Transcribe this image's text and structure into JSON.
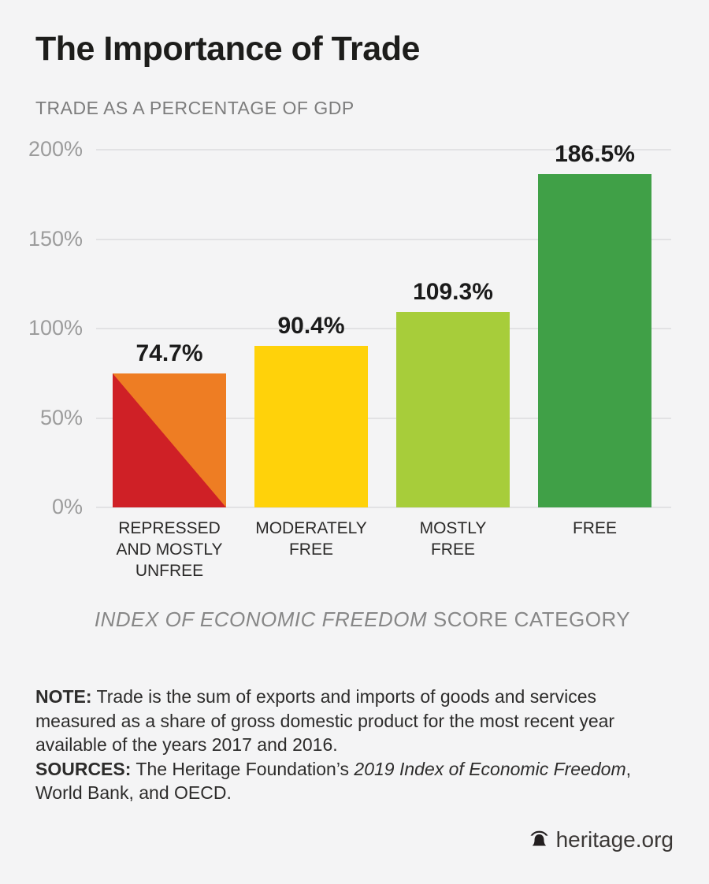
{
  "page": {
    "background": "#f4f4f5"
  },
  "header": {
    "title": "The Importance of Trade",
    "subtitle": "TRADE AS A PERCENTAGE OF GDP"
  },
  "chart_data": {
    "type": "bar",
    "title": "The Importance of Trade",
    "subtitle": "TRADE AS A PERCENTAGE OF GDP",
    "ylim": [
      0,
      200
    ],
    "grid": true,
    "yticks": [
      {
        "value": 200,
        "label": "200%"
      },
      {
        "value": 150,
        "label": "150%"
      },
      {
        "value": 100,
        "label": "100%"
      },
      {
        "value": 50,
        "label": "50%"
      },
      {
        "value": 0,
        "label": "0%"
      }
    ],
    "categories": [
      "REPRESSED AND MOSTLY UNFREE",
      "MODERATELY FREE",
      "MOSTLY FREE",
      "FREE"
    ],
    "values": [
      74.7,
      90.4,
      109.3,
      186.5
    ],
    "xlabel": {
      "italic": "INDEX OF ECONOMIC FREEDOM",
      "regular": " SCORE CATEGORY"
    },
    "legend": "none",
    "bars": [
      {
        "category": "REPRESSED AND MOSTLY UNFREE",
        "label_lines": [
          "REPRESSED",
          "AND MOSTLY",
          "UNFREE"
        ],
        "value": 74.7,
        "display": "74.7%",
        "color": "#EE7D23",
        "color_secondary": "#CF2026",
        "fill": "diagonal-split"
      },
      {
        "category": "MODERATELY FREE",
        "label_lines": [
          "MODERATELY",
          "FREE"
        ],
        "value": 90.4,
        "display": "90.4%",
        "color": "#FFD20A",
        "fill": "solid"
      },
      {
        "category": "MOSTLY FREE",
        "label_lines": [
          "MOSTLY",
          "FREE"
        ],
        "value": 109.3,
        "display": "109.3%",
        "color": "#A7CD3A",
        "fill": "solid"
      },
      {
        "category": "FREE",
        "label_lines": [
          "FREE"
        ],
        "value": 186.5,
        "display": "186.5%",
        "color": "#40A047",
        "fill": "solid"
      }
    ]
  },
  "note": {
    "label": "NOTE:",
    "text": "Trade is the sum of exports and imports of goods and services measured as a share of gross domestic product for the most recent year available of the years 2017 and 2016."
  },
  "sources": {
    "label": "SOURCES:",
    "pre": "The Heritage Foundation’s ",
    "italic": "2019 Index of Economic Freedom",
    "post": ", World Bank, and OECD."
  },
  "footer": {
    "brand": "heritage.org",
    "icon": "liberty-bell-icon"
  }
}
